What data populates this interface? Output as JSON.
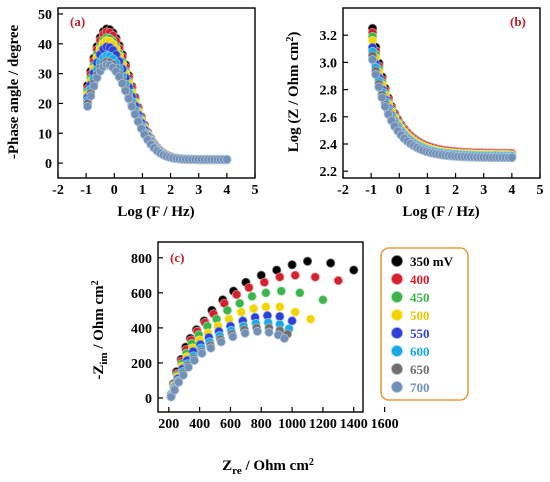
{
  "series_colors": [
    "#000000",
    "#d4212d",
    "#3bb54a",
    "#f2d500",
    "#2c3fd6",
    "#19a9e6",
    "#6e6e6e",
    "#7090b8"
  ],
  "chart_data": [
    {
      "type": "scatter",
      "panel_label": "(a)",
      "xlabel": "Log (F / Hz)",
      "ylabel": "-Phase angle / degree",
      "xlim": [
        -2,
        5
      ],
      "ylim": [
        -5,
        52
      ],
      "xticks": [
        -2,
        -1,
        0,
        1,
        2,
        3,
        4,
        5
      ],
      "yticks": [
        0,
        10,
        20,
        30,
        40,
        50
      ],
      "series": [
        {
          "peak": 45,
          "low": 26
        },
        {
          "peak": 44,
          "low": 25
        },
        {
          "peak": 42,
          "low": 24
        },
        {
          "peak": 41,
          "low": 23
        },
        {
          "peak": 39,
          "low": 22
        },
        {
          "peak": 36,
          "low": 21
        },
        {
          "peak": 34,
          "low": 20
        },
        {
          "peak": 33,
          "low": 19
        }
      ]
    },
    {
      "type": "scatter",
      "panel_label": "(b)",
      "xlabel": "Log (F / Hz)",
      "ylabel": "Log (Z / Ohm cm²)",
      "xlim": [
        -2,
        5
      ],
      "ylim": [
        2.15,
        3.4
      ],
      "xticks": [
        -2,
        -1,
        0,
        1,
        2,
        3,
        4,
        5
      ],
      "yticks": [
        "2.2",
        "2.4",
        "2.6",
        "2.8",
        "3.0",
        "3.2"
      ],
      "series": [
        {
          "z_start": 3.25,
          "z_end": 2.33
        },
        {
          "z_start": 3.22,
          "z_end": 2.33
        },
        {
          "z_start": 3.19,
          "z_end": 2.32
        },
        {
          "z_start": 3.16,
          "z_end": 2.32
        },
        {
          "z_start": 3.11,
          "z_end": 2.31
        },
        {
          "z_start": 3.08,
          "z_end": 2.31
        },
        {
          "z_start": 3.05,
          "z_end": 2.3
        },
        {
          "z_start": 3.02,
          "z_end": 2.3
        }
      ]
    },
    {
      "type": "scatter",
      "panel_label": "(c)",
      "xlabel": "Zre / Ohm cm²",
      "ylabel": "-Zim / Ohm cm²",
      "xlim": [
        130,
        1460
      ],
      "ylim": [
        -80,
        890
      ],
      "xticks": [
        200,
        400,
        600,
        800,
        1000,
        1200,
        1400,
        1600
      ],
      "yticks": [
        0,
        200,
        400,
        600,
        800
      ],
      "series": [
        {
          "name": "350 mV",
          "points": [
            [
              215,
              20
            ],
            [
              230,
              80
            ],
            [
              250,
              150
            ],
            [
              280,
              220
            ],
            [
              310,
              290
            ],
            [
              340,
              340
            ],
            [
              380,
              390
            ],
            [
              430,
              440
            ],
            [
              480,
              500
            ],
            [
              550,
              560
            ],
            [
              620,
              610
            ],
            [
              700,
              660
            ],
            [
              800,
              700
            ],
            [
              900,
              730
            ],
            [
              1000,
              760
            ],
            [
              1100,
              780
            ],
            [
              1250,
              770
            ],
            [
              1400,
              730
            ]
          ]
        },
        {
          "name": "400",
          "points": [
            [
              215,
              18
            ],
            [
              232,
              75
            ],
            [
              252,
              140
            ],
            [
              282,
              210
            ],
            [
              312,
              275
            ],
            [
              345,
              330
            ],
            [
              385,
              380
            ],
            [
              435,
              430
            ],
            [
              490,
              480
            ],
            [
              560,
              540
            ],
            [
              640,
              590
            ],
            [
              720,
              630
            ],
            [
              820,
              660
            ],
            [
              920,
              690
            ],
            [
              1020,
              700
            ],
            [
              1150,
              690
            ],
            [
              1300,
              670
            ]
          ]
        },
        {
          "name": "450",
          "points": [
            [
              215,
              16
            ],
            [
              233,
              70
            ],
            [
              254,
              130
            ],
            [
              284,
              195
            ],
            [
              315,
              255
            ],
            [
              350,
              310
            ],
            [
              395,
              360
            ],
            [
              450,
              410
            ],
            [
              510,
              450
            ],
            [
              580,
              500
            ],
            [
              660,
              540
            ],
            [
              740,
              580
            ],
            [
              830,
              600
            ],
            [
              930,
              610
            ],
            [
              1050,
              600
            ],
            [
              1200,
              560
            ]
          ]
        },
        {
          "name": "500",
          "points": [
            [
              215,
              14
            ],
            [
              234,
              65
            ],
            [
              256,
              120
            ],
            [
              286,
              180
            ],
            [
              318,
              235
            ],
            [
              355,
              285
            ],
            [
              400,
              330
            ],
            [
              455,
              370
            ],
            [
              520,
              410
            ],
            [
              590,
              450
            ],
            [
              670,
              490
            ],
            [
              750,
              510
            ],
            [
              830,
              520
            ],
            [
              920,
              520
            ],
            [
              1020,
              490
            ],
            [
              1120,
              450
            ]
          ]
        },
        {
          "name": "550",
          "points": [
            [
              215,
              12
            ],
            [
              235,
              60
            ],
            [
              258,
              110
            ],
            [
              288,
              165
            ],
            [
              320,
              215
            ],
            [
              358,
              265
            ],
            [
              405,
              305
            ],
            [
              460,
              345
            ],
            [
              525,
              380
            ],
            [
              600,
              410
            ],
            [
              680,
              440
            ],
            [
              760,
              460
            ],
            [
              840,
              470
            ],
            [
              920,
              465
            ],
            [
              1000,
              440
            ]
          ]
        },
        {
          "name": "600",
          "points": [
            [
              215,
              10
            ],
            [
              236,
              55
            ],
            [
              260,
              100
            ],
            [
              290,
              150
            ],
            [
              322,
              195
            ],
            [
              360,
              240
            ],
            [
              410,
              285
            ],
            [
              465,
              320
            ],
            [
              530,
              355
            ],
            [
              605,
              385
            ],
            [
              685,
              410
            ],
            [
              765,
              425
            ],
            [
              845,
              430
            ],
            [
              920,
              420
            ],
            [
              980,
              395
            ]
          ]
        },
        {
          "name": "650",
          "points": [
            [
              215,
              8
            ],
            [
              237,
              50
            ],
            [
              262,
              95
            ],
            [
              292,
              140
            ],
            [
              325,
              185
            ],
            [
              363,
              225
            ],
            [
              412,
              265
            ],
            [
              470,
              300
            ],
            [
              535,
              335
            ],
            [
              610,
              365
            ],
            [
              690,
              390
            ],
            [
              770,
              400
            ],
            [
              850,
              400
            ],
            [
              920,
              385
            ],
            [
              970,
              365
            ]
          ]
        },
        {
          "name": "700",
          "points": [
            [
              215,
              6
            ],
            [
              238,
              45
            ],
            [
              264,
              90
            ],
            [
              294,
              130
            ],
            [
              327,
              175
            ],
            [
              366,
              215
            ],
            [
              415,
              255
            ],
            [
              473,
              285
            ],
            [
              540,
              320
            ],
            [
              615,
              350
            ],
            [
              695,
              370
            ],
            [
              775,
              380
            ],
            [
              850,
              375
            ],
            [
              910,
              360
            ],
            [
              950,
              340
            ]
          ]
        }
      ]
    }
  ],
  "legend": {
    "items": [
      "350 mV",
      "400",
      "450",
      "500",
      "550",
      "600",
      "650",
      "700"
    ],
    "text_colors": [
      "#000000",
      "#d4212d",
      "#3bb54a",
      "#e6c800",
      "#2c3fd6",
      "#19a9e6",
      "#6e6e6e",
      "#7090b8"
    ],
    "border_color": "#e0a040"
  }
}
